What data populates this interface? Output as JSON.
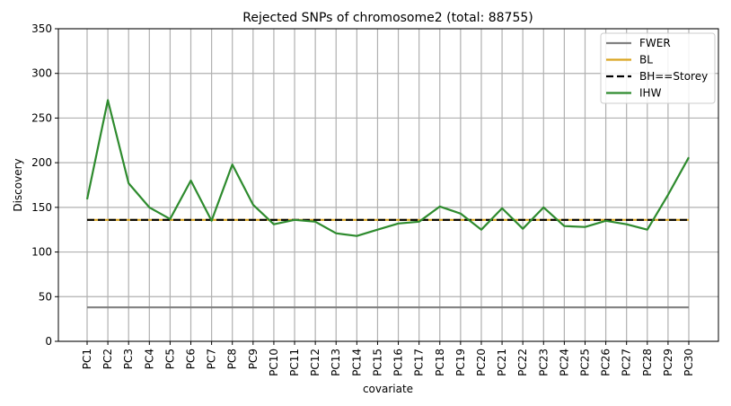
{
  "chart_data": {
    "type": "line",
    "title": "Rejected SNPs of chromosome2 (total: 88755)",
    "xlabel": "covariate",
    "ylabel": "Discovery",
    "ylim": [
      0,
      350
    ],
    "yticks": [
      0,
      50,
      100,
      150,
      200,
      250,
      300,
      350
    ],
    "grid": true,
    "legend_position": "top-right",
    "categories": [
      "PC1",
      "PC2",
      "PC3",
      "PC4",
      "PC5",
      "PC6",
      "PC7",
      "PC8",
      "PC9",
      "PC10",
      "PC11",
      "PC12",
      "PC13",
      "PC14",
      "PC15",
      "PC16",
      "PC17",
      "PC18",
      "PC19",
      "PC20",
      "PC21",
      "PC22",
      "PC23",
      "PC24",
      "PC25",
      "PC26",
      "PC27",
      "PC28",
      "PC29",
      "PC30"
    ],
    "series": [
      {
        "name": "FWER",
        "color": "#808080",
        "style": "solid",
        "values": [
          38,
          38,
          38,
          38,
          38,
          38,
          38,
          38,
          38,
          38,
          38,
          38,
          38,
          38,
          38,
          38,
          38,
          38,
          38,
          38,
          38,
          38,
          38,
          38,
          38,
          38,
          38,
          38,
          38,
          38
        ]
      },
      {
        "name": "BL",
        "color": "#daa520",
        "style": "solid",
        "values": [
          136,
          136,
          136,
          136,
          136,
          136,
          136,
          136,
          136,
          136,
          136,
          136,
          136,
          136,
          136,
          136,
          136,
          136,
          136,
          136,
          136,
          136,
          136,
          136,
          136,
          136,
          136,
          136,
          136,
          136
        ]
      },
      {
        "name": "BH==Storey",
        "color": "#000000",
        "style": "dashed",
        "values": [
          136,
          136,
          136,
          136,
          136,
          136,
          136,
          136,
          136,
          136,
          136,
          136,
          136,
          136,
          136,
          136,
          136,
          136,
          136,
          136,
          136,
          136,
          136,
          136,
          136,
          136,
          136,
          136,
          136,
          136
        ]
      },
      {
        "name": "IHW",
        "color": "#2e8b2e",
        "style": "solid",
        "values": [
          159,
          270,
          177,
          150,
          137,
          180,
          135,
          198,
          153,
          131,
          136,
          134,
          121,
          118,
          125,
          132,
          134,
          151,
          143,
          125,
          149,
          126,
          150,
          129,
          128,
          135,
          131,
          125,
          164,
          206
        ]
      }
    ]
  }
}
